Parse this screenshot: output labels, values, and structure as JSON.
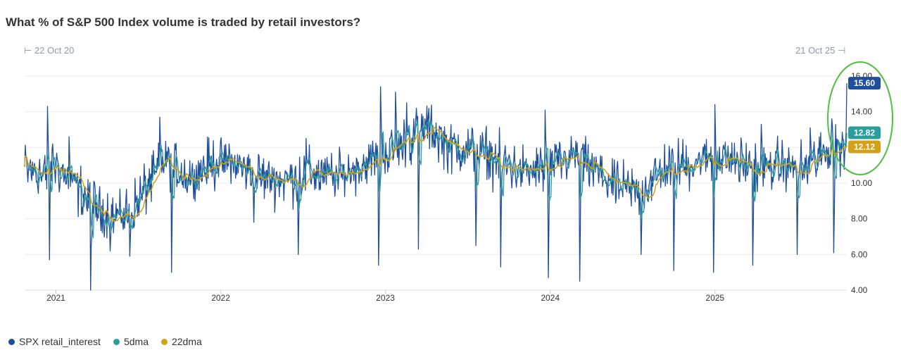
{
  "header": {
    "title": "What % of S&P 500 Index volume is traded by retail investors?",
    "range_start": "22 Oct 20",
    "range_end": "21 Oct 25",
    "range_start_glyph": "⊢",
    "range_end_glyph": "⊣"
  },
  "legend": [
    {
      "label": "SPX retail_interest",
      "color": "#1f4e9c"
    },
    {
      "label": "5dma",
      "color": "#2a9d9d"
    },
    {
      "label": "22dma",
      "color": "#d4a017"
    }
  ],
  "chart_data": {
    "type": "line",
    "title": "What % of S&P 500 Index volume is traded by retail investors?",
    "xlabel": "",
    "ylabel": "",
    "x_range": [
      2020.81,
      2025.8
    ],
    "ylim": [
      4,
      16
    ],
    "y_ticks": [
      "4.00",
      "6.00",
      "8.00",
      "10.00",
      "12.00",
      "14.00",
      "16.00"
    ],
    "x_ticks": [
      {
        "label": "2021",
        "x": 2021.0
      },
      {
        "label": "2022",
        "x": 2022.0
      },
      {
        "label": "2023",
        "x": 2023.0
      },
      {
        "label": "2024",
        "x": 2024.0
      },
      {
        "label": "2025",
        "x": 2025.0
      }
    ],
    "anchors": {
      "x": [
        2020.81,
        2020.95,
        2020.97,
        2021.1,
        2021.25,
        2021.35,
        2021.45,
        2021.55,
        2021.67,
        2021.8,
        2021.97,
        2022.1,
        2022.25,
        2022.4,
        2022.55,
        2022.7,
        2022.85,
        2022.98,
        2023.1,
        2023.25,
        2023.4,
        2023.55,
        2023.7,
        2023.85,
        2023.98,
        2024.15,
        2024.3,
        2024.42,
        2024.55,
        2024.7,
        2024.85,
        2024.98,
        2025.1,
        2025.25,
        2025.4,
        2025.55,
        2025.7,
        2025.8
      ],
      "y": [
        10.8,
        10.4,
        11.3,
        10.0,
        8.5,
        8.1,
        8.3,
        9.8,
        11.3,
        10.3,
        11.2,
        11.0,
        10.3,
        10.2,
        10.6,
        10.3,
        11.0,
        11.6,
        12.1,
        13.2,
        12.0,
        11.8,
        11.2,
        10.6,
        10.8,
        11.6,
        10.5,
        9.7,
        9.5,
        10.9,
        11.1,
        11.5,
        11.3,
        10.8,
        11.0,
        10.8,
        11.9,
        12.1
      ]
    },
    "series": [
      {
        "name": "SPX retail_interest",
        "color": "#1f4e9c",
        "last_value": 15.6,
        "points": 1260
      },
      {
        "name": "5dma",
        "color": "#2a9d9d",
        "last_value": 12.82
      },
      {
        "name": "22dma",
        "color": "#d4a017",
        "last_value": 12.12
      }
    ],
    "spikes": [
      {
        "x": 2020.95,
        "y": 14.3
      },
      {
        "x": 2020.96,
        "y": 13.5
      },
      {
        "x": 2021.08,
        "y": 12.6
      },
      {
        "x": 2021.63,
        "y": 13.7
      },
      {
        "x": 2022.05,
        "y": 12.2
      },
      {
        "x": 2022.52,
        "y": 12.5
      },
      {
        "x": 2022.97,
        "y": 15.4
      },
      {
        "x": 2023.06,
        "y": 15.1
      },
      {
        "x": 2023.13,
        "y": 14.5
      },
      {
        "x": 2023.19,
        "y": 14.2
      },
      {
        "x": 2023.97,
        "y": 14.1
      },
      {
        "x": 2025.0,
        "y": 14.4
      },
      {
        "x": 2025.28,
        "y": 13.3
      },
      {
        "x": 2025.58,
        "y": 13.1
      },
      {
        "x": 2025.71,
        "y": 13.6
      }
    ],
    "dips": [
      {
        "x": 2020.96,
        "y": 5.7
      },
      {
        "x": 2021.21,
        "y": 4.0
      },
      {
        "x": 2021.33,
        "y": 6.2
      },
      {
        "x": 2021.45,
        "y": 5.9
      },
      {
        "x": 2021.7,
        "y": 5.0
      },
      {
        "x": 2022.2,
        "y": 7.8
      },
      {
        "x": 2022.47,
        "y": 6.0
      },
      {
        "x": 2022.96,
        "y": 5.4
      },
      {
        "x": 2023.2,
        "y": 6.3
      },
      {
        "x": 2023.55,
        "y": 6.5
      },
      {
        "x": 2023.7,
        "y": 5.3
      },
      {
        "x": 2023.99,
        "y": 4.7
      },
      {
        "x": 2024.18,
        "y": 4.5
      },
      {
        "x": 2024.55,
        "y": 6.0
      },
      {
        "x": 2024.75,
        "y": 5.1
      },
      {
        "x": 2024.99,
        "y": 5.0
      },
      {
        "x": 2025.23,
        "y": 5.4
      },
      {
        "x": 2025.5,
        "y": 6.0
      },
      {
        "x": 2025.72,
        "y": 6.1
      }
    ],
    "highlight": "last-values-circled",
    "legend_position": "bottom-left"
  }
}
